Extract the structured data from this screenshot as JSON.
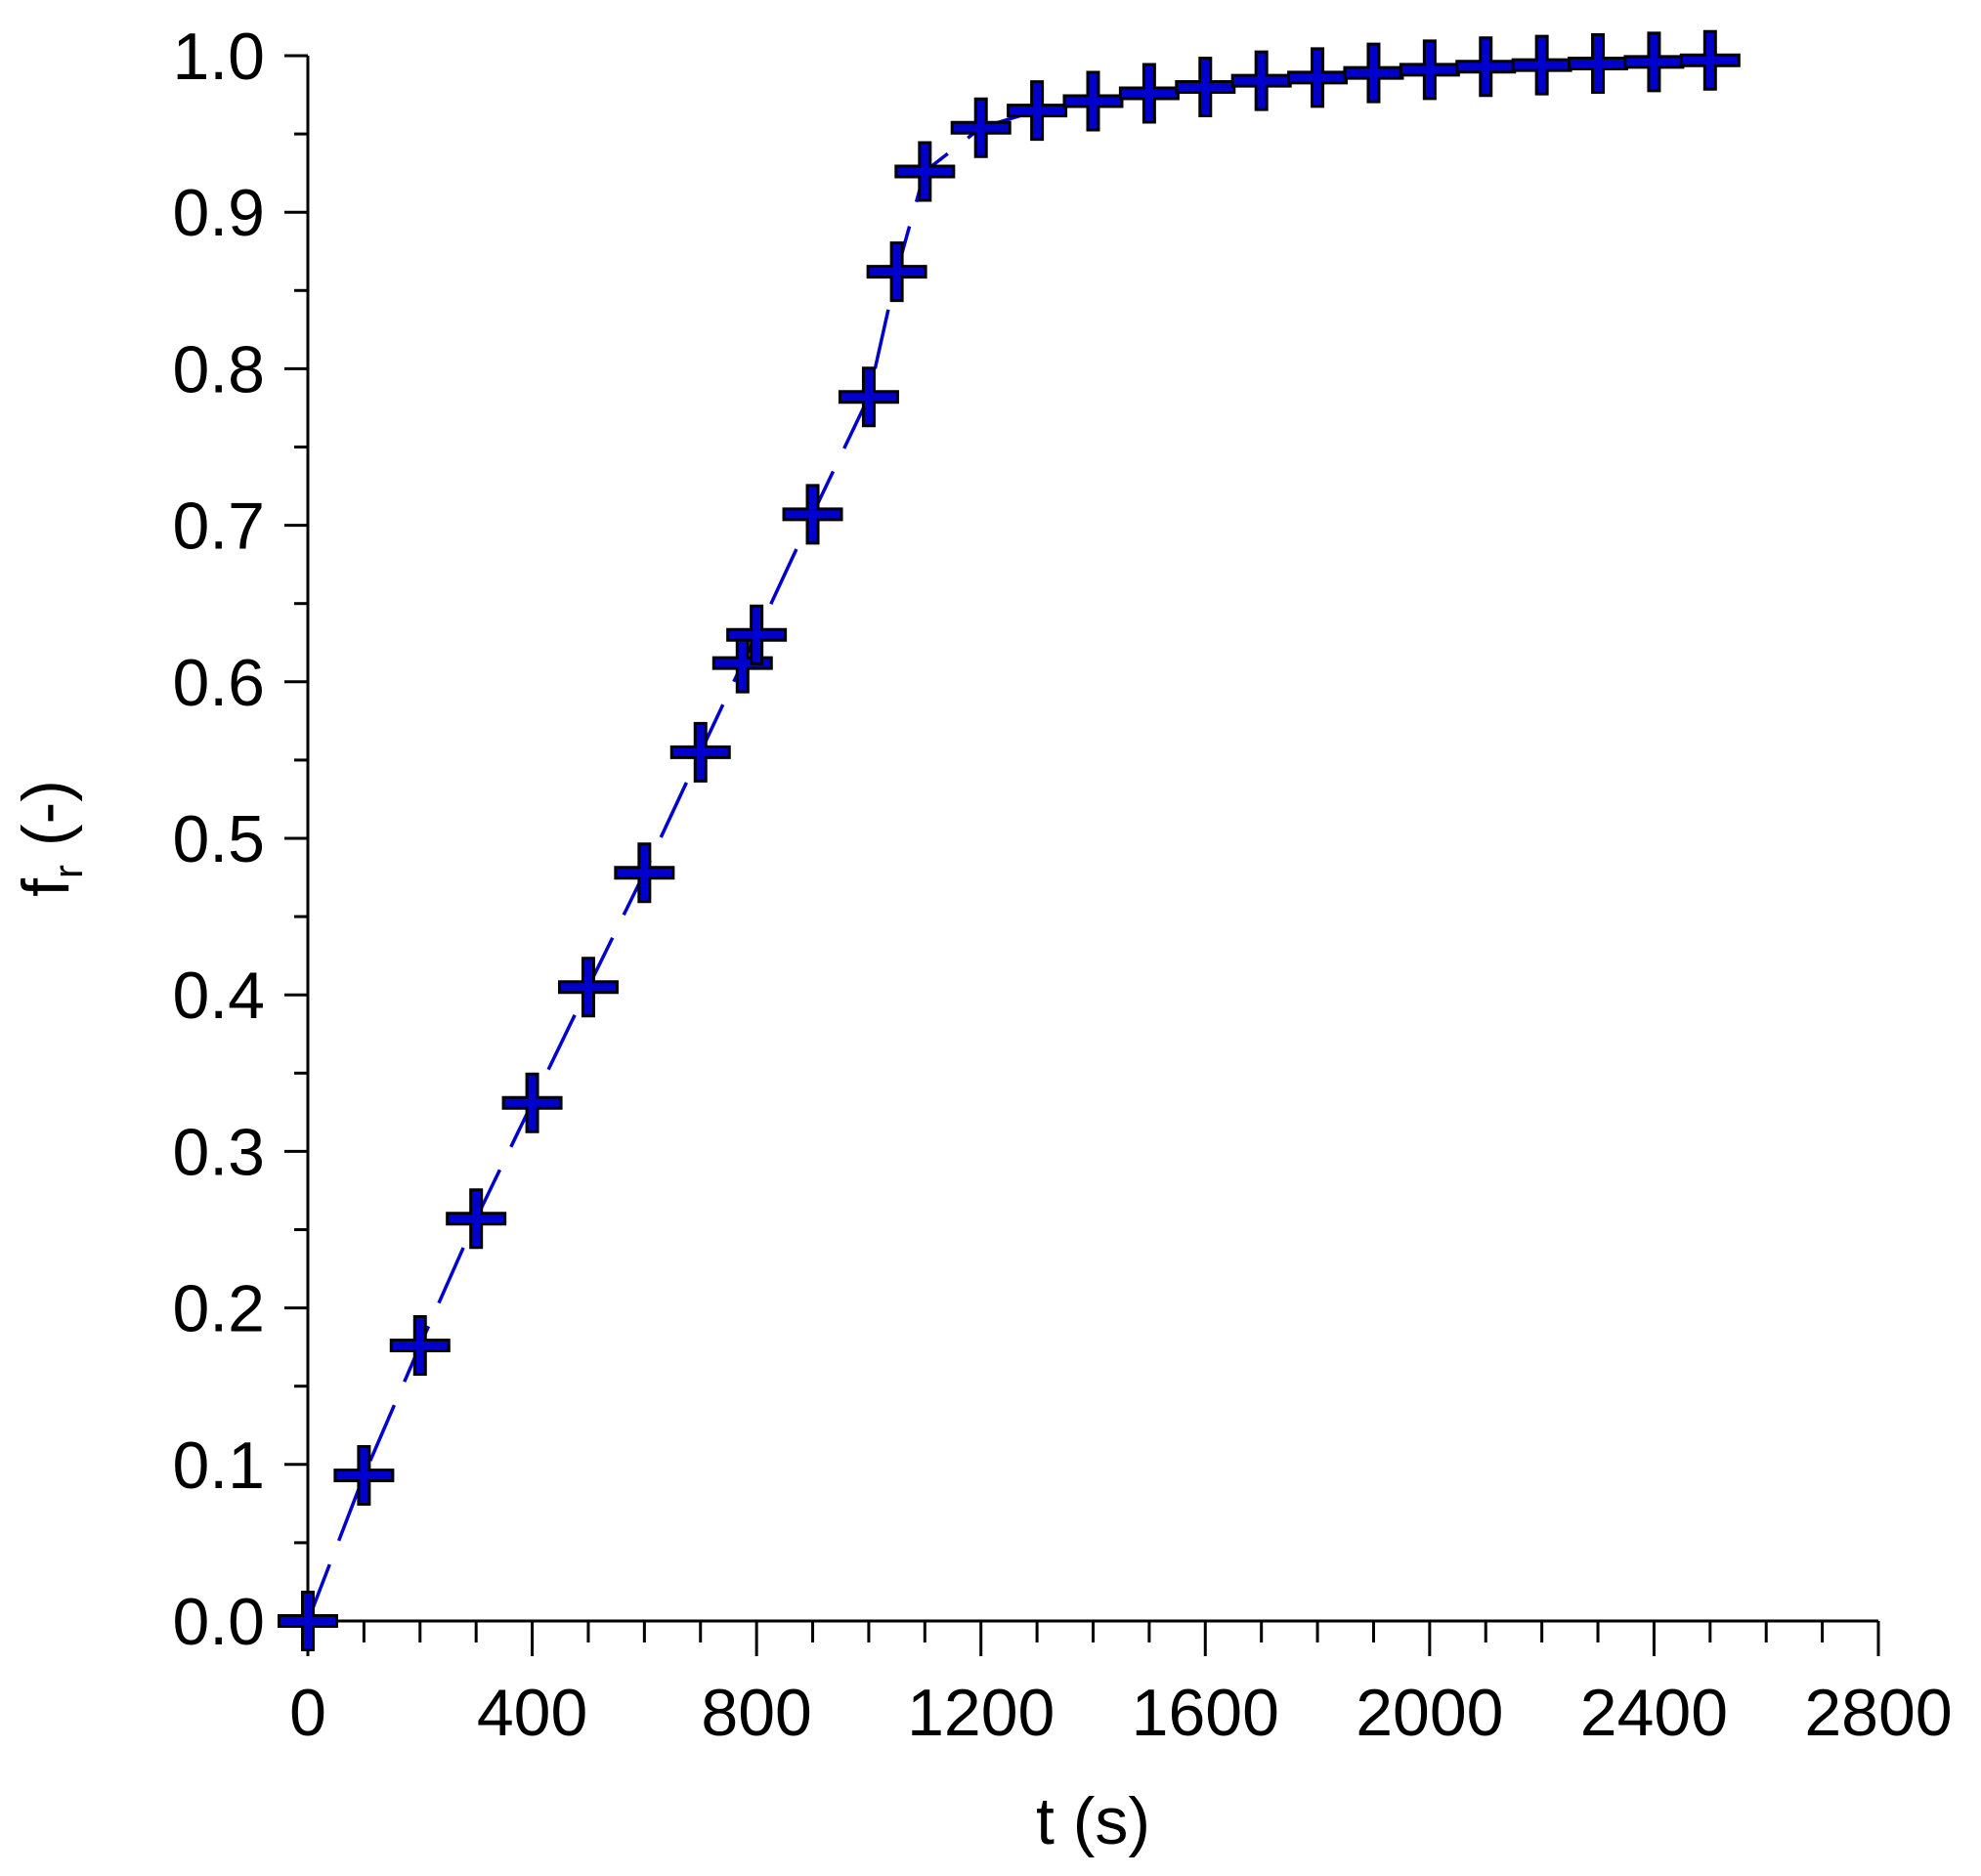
{
  "chart_data": {
    "type": "line",
    "xlabel": "t (s)",
    "ylabel_main": "f",
    "ylabel_sub": "r",
    "ylabel_suffix": " (-)",
    "xlim": [
      0,
      2800
    ],
    "ylim": [
      0,
      1.0
    ],
    "x_ticks": [
      "0",
      "400",
      "800",
      "1200",
      "1600",
      "2000",
      "2400",
      "2800"
    ],
    "y_ticks": [
      "0.0",
      "0.1",
      "0.2",
      "0.3",
      "0.4",
      "0.5",
      "0.6",
      "0.7",
      "0.8",
      "0.9",
      "1.0"
    ],
    "grid": false,
    "line_style": "dashed",
    "marker": "plus",
    "color": "#0000cc",
    "series": [
      {
        "x": [
          0,
          100,
          200,
          300,
          400,
          500,
          600,
          700,
          775,
          800,
          900,
          1000,
          1050,
          1100,
          1200,
          1300,
          1400,
          1500,
          1600,
          1700,
          1800,
          1900,
          2000,
          2100,
          2200,
          2300,
          2400,
          2500
        ],
        "y": [
          0.0,
          0.093,
          0.176,
          0.257,
          0.331,
          0.405,
          0.478,
          0.555,
          0.612,
          0.63,
          0.707,
          0.782,
          0.862,
          0.926,
          0.954,
          0.965,
          0.971,
          0.976,
          0.98,
          0.984,
          0.986,
          0.989,
          0.991,
          0.993,
          0.994,
          0.995,
          0.996,
          0.997
        ]
      }
    ]
  }
}
